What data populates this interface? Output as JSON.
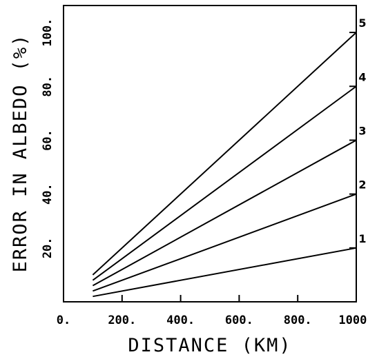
{
  "chart_data": {
    "type": "line",
    "title": "",
    "xlabel": "DISTANCE (KM)",
    "ylabel": "ERROR IN ALBEDO (%)",
    "xlim": [
      0,
      1000
    ],
    "ylim": [
      0,
      110
    ],
    "x_ticks": [
      0,
      200,
      400,
      600,
      800,
      1000
    ],
    "x_tick_labels": [
      "0.",
      "200.",
      "400.",
      "600.",
      "800.",
      "1000."
    ],
    "y_ticks": [
      20,
      40,
      60,
      80,
      100
    ],
    "y_tick_labels": [
      "20.",
      "40.",
      "60.",
      "80.",
      "100."
    ],
    "grid": false,
    "series": [
      {
        "name": "1",
        "x": [
          100,
          1000
        ],
        "y": [
          2,
          20
        ]
      },
      {
        "name": "2",
        "x": [
          100,
          1000
        ],
        "y": [
          4,
          40
        ]
      },
      {
        "name": "3",
        "x": [
          100,
          1000
        ],
        "y": [
          6,
          60
        ]
      },
      {
        "name": "4",
        "x": [
          100,
          1000
        ],
        "y": [
          8,
          80
        ]
      },
      {
        "name": "5",
        "x": [
          100,
          1000
        ],
        "y": [
          10,
          100
        ]
      }
    ]
  }
}
